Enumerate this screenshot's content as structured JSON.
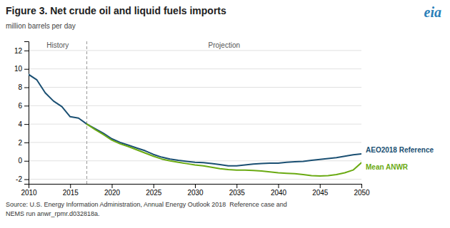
{
  "chart_data": {
    "type": "line",
    "title": "Figure 3. Net crude oil and liquid fuels imports",
    "ylabel": "million barrels per day",
    "annotations": [
      "History",
      "Projection"
    ],
    "divider_x": 2017,
    "xlim": [
      2010,
      2050
    ],
    "ylim": [
      -2.5,
      13
    ],
    "xticks": [
      2010,
      2015,
      2020,
      2025,
      2030,
      2035,
      2040,
      2045,
      2050
    ],
    "yticks": [
      -2,
      0,
      2,
      4,
      6,
      8,
      10,
      12
    ],
    "grid": "y",
    "series": [
      {
        "name": "AEO2018 Reference",
        "color": "#1a4f72",
        "x": [
          2010,
          2011,
          2012,
          2013,
          2014,
          2015,
          2016,
          2017,
          2018,
          2019,
          2020,
          2021,
          2022,
          2023,
          2024,
          2025,
          2026,
          2027,
          2028,
          2029,
          2030,
          2031,
          2032,
          2033,
          2034,
          2035,
          2036,
          2037,
          2038,
          2039,
          2040,
          2041,
          2042,
          2043,
          2044,
          2045,
          2046,
          2047,
          2048,
          2049,
          2050
        ],
        "values": [
          9.4,
          8.8,
          7.4,
          6.5,
          5.9,
          4.8,
          4.65,
          4.0,
          3.5,
          3.0,
          2.4,
          2.0,
          1.7,
          1.4,
          1.1,
          0.7,
          0.4,
          0.2,
          0.05,
          -0.05,
          -0.15,
          -0.2,
          -0.3,
          -0.4,
          -0.55,
          -0.55,
          -0.45,
          -0.35,
          -0.3,
          -0.25,
          -0.25,
          -0.15,
          -0.1,
          -0.05,
          0.05,
          0.15,
          0.25,
          0.35,
          0.5,
          0.65,
          0.75
        ]
      },
      {
        "name": "Mean ANWR",
        "color": "#6aaa12",
        "x": [
          2017,
          2018,
          2019,
          2020,
          2021,
          2022,
          2023,
          2024,
          2025,
          2026,
          2027,
          2028,
          2029,
          2030,
          2031,
          2032,
          2033,
          2034,
          2035,
          2036,
          2037,
          2038,
          2039,
          2040,
          2041,
          2042,
          2043,
          2044,
          2045,
          2046,
          2047,
          2048,
          2049,
          2050
        ],
        "values": [
          4.0,
          3.4,
          2.85,
          2.25,
          1.85,
          1.55,
          1.2,
          0.85,
          0.5,
          0.2,
          0.0,
          -0.15,
          -0.3,
          -0.45,
          -0.55,
          -0.7,
          -0.85,
          -0.95,
          -1.0,
          -1.0,
          -1.05,
          -1.1,
          -1.2,
          -1.3,
          -1.35,
          -1.4,
          -1.5,
          -1.6,
          -1.65,
          -1.6,
          -1.5,
          -1.3,
          -1.0,
          -0.2
        ]
      }
    ],
    "source": [
      "Source: U.S. Energy Information Administration, Annual Energy Outlook 2018  Reference case and",
      "NEMS run anwr_rpmr.d032818a."
    ],
    "logo": "eia"
  }
}
